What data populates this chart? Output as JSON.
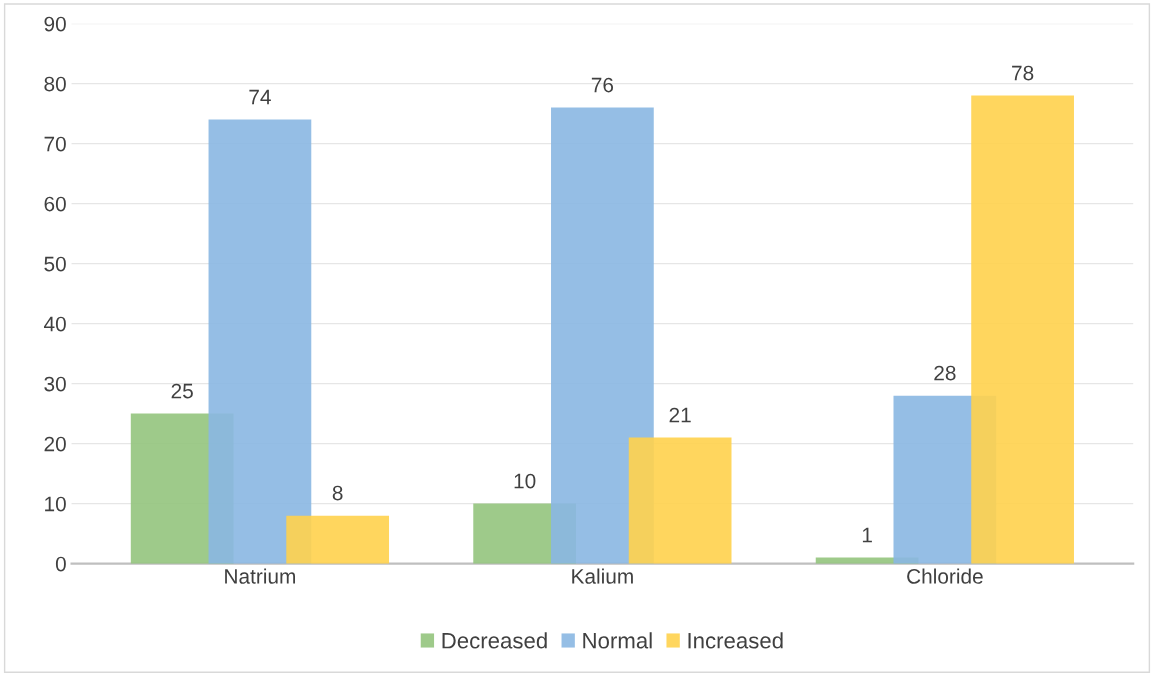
{
  "chart_data": {
    "type": "bar",
    "categories": [
      "Natrium",
      "Kalium",
      "Chloride"
    ],
    "series": [
      {
        "name": "Decreased",
        "color": "#93c47d",
        "values": [
          25,
          10,
          1
        ]
      },
      {
        "name": "Normal",
        "color": "#8ab7e2",
        "values": [
          74,
          76,
          28
        ]
      },
      {
        "name": "Increased",
        "color": "#ffd24d",
        "values": [
          8,
          21,
          78
        ]
      }
    ],
    "ylim": [
      0,
      90
    ],
    "yticks": [
      0,
      10,
      20,
      30,
      40,
      50,
      60,
      70,
      80,
      90
    ],
    "grid": "y",
    "legend": "bottom",
    "data_labels": true
  }
}
